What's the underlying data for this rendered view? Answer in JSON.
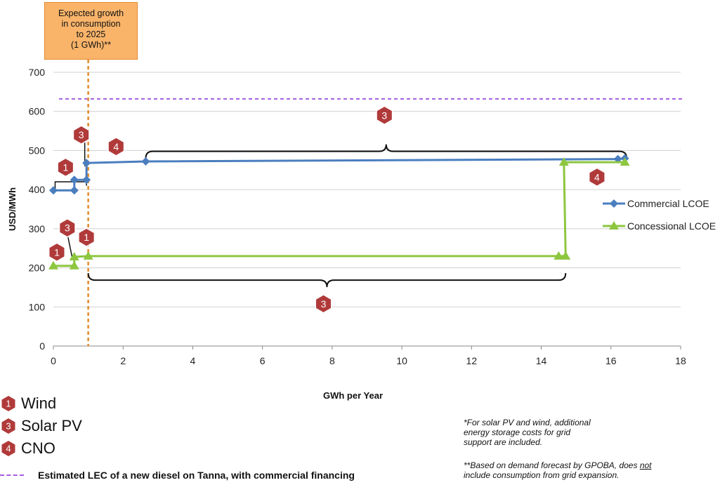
{
  "chart_data": {
    "type": "line",
    "title": "",
    "xlabel": "GWh per Year",
    "ylabel": "USD/MWh",
    "xlim": [
      0,
      18
    ],
    "ylim": [
      0,
      700
    ],
    "x_ticks": [
      0,
      2,
      4,
      6,
      8,
      10,
      12,
      14,
      16,
      18
    ],
    "y_ticks": [
      0,
      100,
      200,
      300,
      400,
      500,
      600,
      700
    ],
    "grid": "horizontal",
    "legend_position": "right",
    "series": [
      {
        "name": "Commercial LCOE",
        "color": "#4a7ebf",
        "marker": "diamond",
        "points": [
          [
            0,
            398
          ],
          [
            0.6,
            398
          ],
          [
            0.6,
            425
          ],
          [
            0.95,
            425
          ],
          [
            0.95,
            468
          ],
          [
            2.65,
            472
          ],
          [
            16.2,
            478
          ],
          [
            16.4,
            480
          ]
        ]
      },
      {
        "name": "Concessional LCOE",
        "color": "#8dc63f",
        "marker": "triangle",
        "points": [
          [
            0,
            205
          ],
          [
            0.6,
            205
          ],
          [
            0.6,
            228
          ],
          [
            1.0,
            230
          ],
          [
            14.5,
            230
          ],
          [
            14.7,
            230
          ],
          [
            14.65,
            470
          ],
          [
            16.4,
            470
          ]
        ]
      }
    ],
    "reference_line": {
      "label": "Estimated LEC of a new diesel on Tanna, with commercial financing",
      "y": 632,
      "color": "#a35ee0"
    },
    "vertical_line": {
      "x": 1.0,
      "color": "#e58a2b"
    },
    "annotation_box": {
      "lines": [
        "Expected growth",
        "in consumption",
        "to 2025",
        "(1 GWh)**"
      ]
    },
    "markers": [
      {
        "label": "1",
        "x": 0.35,
        "y": 457
      },
      {
        "label": "3",
        "x": 0.8,
        "y": 540
      },
      {
        "label": "4",
        "x": 1.8,
        "y": 510
      },
      {
        "label": "3",
        "x": 9.5,
        "y": 590
      },
      {
        "label": "4",
        "x": 15.6,
        "y": 432
      },
      {
        "label": "3",
        "x": 0.4,
        "y": 302
      },
      {
        "label": "1",
        "x": 0.1,
        "y": 240
      },
      {
        "label": "1",
        "x": 0.95,
        "y": 278
      },
      {
        "label": "3",
        "x": 7.75,
        "y": 108
      }
    ]
  },
  "key": [
    {
      "number": "1",
      "label": "Wind"
    },
    {
      "number": "3",
      "label": "Solar PV"
    },
    {
      "number": "4",
      "label": "CNO"
    }
  ],
  "notes": {
    "note1_lines": [
      "*For solar PV and wind, additional",
      "energy storage costs for grid",
      "support are included."
    ],
    "note2_line1": "**Based on demand forecast by GPOBA, does ",
    "note2_not": "not",
    "note2_line2": "include consumption from grid expansion."
  }
}
